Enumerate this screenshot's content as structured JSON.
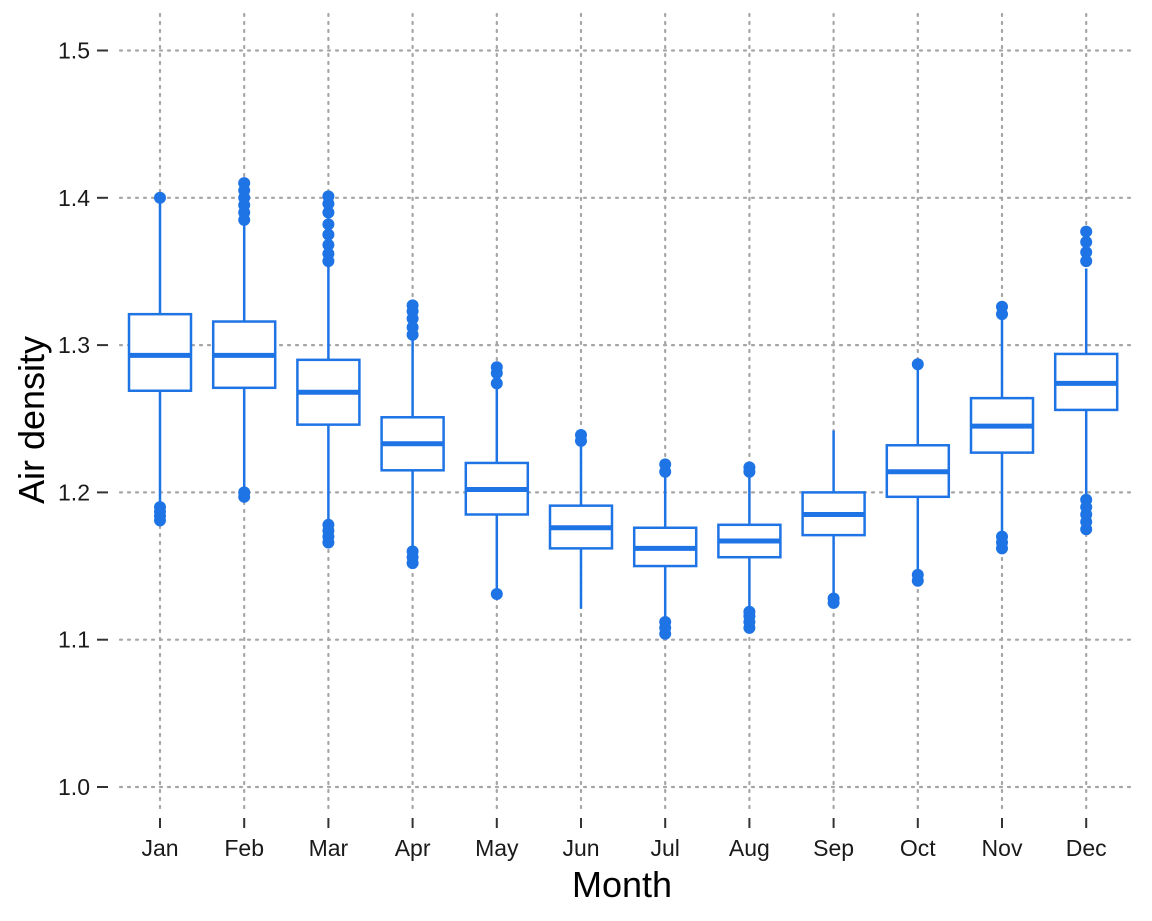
{
  "chart_data": {
    "type": "box",
    "xlabel": "Month",
    "ylabel": "Air density",
    "ylim": [
      0.98,
      1.52
    ],
    "yticks": [
      1.0,
      1.1,
      1.2,
      1.3,
      1.4,
      1.5
    ],
    "ytick_labels": [
      "1.0",
      "1.1",
      "1.2",
      "1.3",
      "1.4",
      "1.5"
    ],
    "grid": true,
    "grid_style": "dotted",
    "color": "#1f74e5",
    "categories": [
      "Jan",
      "Feb",
      "Mar",
      "Apr",
      "May",
      "Jun",
      "Jul",
      "Aug",
      "Sep",
      "Oct",
      "Nov",
      "Dec"
    ],
    "boxes": [
      {
        "month": "Jan",
        "whisker_low": 1.193,
        "q1": 1.269,
        "median": 1.293,
        "q3": 1.321,
        "whisker_high": 1.398,
        "outliers_low": [
          1.181,
          1.184,
          1.187,
          1.19
        ],
        "outliers_high": [
          1.4
        ]
      },
      {
        "month": "Feb",
        "whisker_low": 1.204,
        "q1": 1.271,
        "median": 1.293,
        "q3": 1.316,
        "whisker_high": 1.384,
        "outliers_low": [
          1.197,
          1.2
        ],
        "outliers_high": [
          1.385,
          1.39,
          1.395,
          1.4,
          1.405,
          1.41
        ]
      },
      {
        "month": "Mar",
        "whisker_low": 1.18,
        "q1": 1.246,
        "median": 1.268,
        "q3": 1.29,
        "whisker_high": 1.356,
        "outliers_low": [
          1.166,
          1.17,
          1.174,
          1.178
        ],
        "outliers_high": [
          1.357,
          1.362,
          1.368,
          1.375,
          1.382,
          1.39,
          1.396,
          1.401
        ]
      },
      {
        "month": "Apr",
        "whisker_low": 1.162,
        "q1": 1.215,
        "median": 1.233,
        "q3": 1.251,
        "whisker_high": 1.304,
        "outliers_low": [
          1.152,
          1.156,
          1.16
        ],
        "outliers_high": [
          1.307,
          1.312,
          1.318,
          1.323,
          1.327
        ]
      },
      {
        "month": "May",
        "whisker_low": 1.134,
        "q1": 1.185,
        "median": 1.202,
        "q3": 1.22,
        "whisker_high": 1.271,
        "outliers_low": [
          1.131
        ],
        "outliers_high": [
          1.274,
          1.281,
          1.285
        ]
      },
      {
        "month": "Jun",
        "whisker_low": 1.121,
        "q1": 1.162,
        "median": 1.176,
        "q3": 1.191,
        "whisker_high": 1.233,
        "outliers_low": [],
        "outliers_high": [
          1.235,
          1.239
        ]
      },
      {
        "month": "Jul",
        "whisker_low": 1.115,
        "q1": 1.15,
        "median": 1.162,
        "q3": 1.176,
        "whisker_high": 1.212,
        "outliers_low": [
          1.104,
          1.108,
          1.112
        ],
        "outliers_high": [
          1.214,
          1.219
        ]
      },
      {
        "month": "Aug",
        "whisker_low": 1.122,
        "q1": 1.156,
        "median": 1.167,
        "q3": 1.178,
        "whisker_high": 1.212,
        "outliers_low": [
          1.108,
          1.112,
          1.116,
          1.119
        ],
        "outliers_high": [
          1.214,
          1.217
        ]
      },
      {
        "month": "Sep",
        "whisker_low": 1.128,
        "q1": 1.171,
        "median": 1.185,
        "q3": 1.2,
        "whisker_high": 1.242,
        "outliers_low": [
          1.125,
          1.128
        ],
        "outliers_high": []
      },
      {
        "month": "Oct",
        "whisker_low": 1.146,
        "q1": 1.197,
        "median": 1.214,
        "q3": 1.232,
        "whisker_high": 1.284,
        "outliers_low": [
          1.14,
          1.144
        ],
        "outliers_high": [
          1.287
        ]
      },
      {
        "month": "Nov",
        "whisker_low": 1.172,
        "q1": 1.227,
        "median": 1.245,
        "q3": 1.264,
        "whisker_high": 1.319,
        "outliers_low": [
          1.162,
          1.166,
          1.17
        ],
        "outliers_high": [
          1.321,
          1.326
        ]
      },
      {
        "month": "Dec",
        "whisker_low": 1.198,
        "q1": 1.256,
        "median": 1.274,
        "q3": 1.294,
        "whisker_high": 1.352,
        "outliers_low": [
          1.175,
          1.18,
          1.185,
          1.19,
          1.195
        ],
        "outliers_high": [
          1.357,
          1.363,
          1.37,
          1.377
        ]
      }
    ]
  }
}
